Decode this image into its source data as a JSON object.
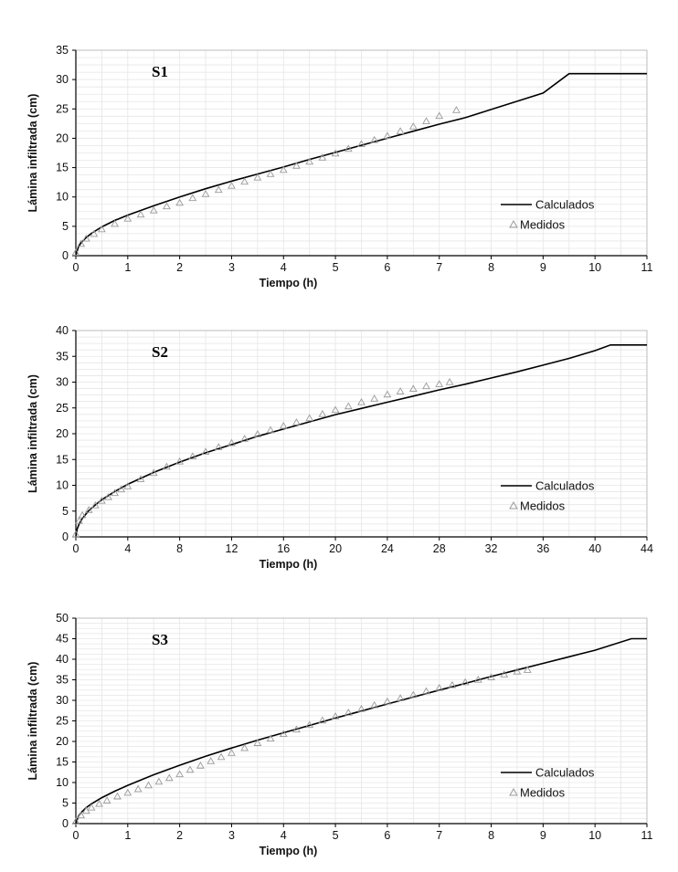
{
  "chart_data": [
    {
      "type": "line",
      "panel_label": "S1",
      "xlabel": "Tiempo (h)",
      "ylabel": "Lámina infiltrada (cm)",
      "xlim": [
        0,
        11
      ],
      "ylim": [
        0,
        35
      ],
      "xticks": [
        "0",
        "1",
        "2",
        "3",
        "4",
        "5",
        "6",
        "7",
        "8",
        "9",
        "10",
        "11"
      ],
      "yticks": [
        "0",
        "5",
        "10",
        "15",
        "20",
        "25",
        "30",
        "35"
      ],
      "grid": true,
      "legend": "right",
      "series": [
        {
          "name": "Calculados",
          "style": "line",
          "color": "#000000",
          "x": [
            0,
            0.05,
            0.1,
            0.2,
            0.3,
            0.5,
            0.75,
            1,
            1.5,
            2,
            2.5,
            3,
            3.5,
            4,
            4.5,
            5,
            5.5,
            6,
            6.5,
            7,
            7.5,
            8,
            8.5,
            9,
            9.5,
            10,
            10.5,
            11
          ],
          "y": [
            0,
            1.5,
            2.2,
            3.1,
            3.8,
            4.9,
            6.0,
            6.9,
            8.5,
            10.0,
            11.4,
            12.7,
            13.9,
            15.1,
            16.4,
            17.6,
            18.8,
            20.0,
            21.2,
            22.4,
            23.5,
            24.9,
            26.3,
            27.7,
            31.0,
            31.0,
            31.0,
            31.0
          ]
        },
        {
          "name": "Medidos",
          "style": "triangle-marker",
          "color": "#9a9a9a",
          "x": [
            0,
            0.1,
            0.2,
            0.35,
            0.5,
            0.75,
            1,
            1.25,
            1.5,
            1.75,
            2,
            2.25,
            2.5,
            2.75,
            3,
            3.25,
            3.5,
            3.75,
            4,
            4.25,
            4.5,
            4.75,
            5,
            5.25,
            5.5,
            5.75,
            6,
            6.25,
            6.5,
            6.75,
            7,
            7.33
          ],
          "y": [
            0.5,
            2.0,
            2.9,
            3.7,
            4.5,
            5.4,
            6.3,
            7.0,
            7.7,
            8.4,
            9.0,
            9.8,
            10.5,
            11.2,
            11.9,
            12.6,
            13.3,
            13.9,
            14.6,
            15.3,
            16.0,
            16.7,
            17.4,
            18.2,
            19.0,
            19.7,
            20.4,
            21.2,
            22.0,
            22.9,
            23.8,
            24.8
          ]
        }
      ]
    },
    {
      "type": "line",
      "panel_label": "S2",
      "xlabel": "Tiempo (h)",
      "ylabel": "Lámina infiltrada (cm)",
      "xlim": [
        0,
        44
      ],
      "ylim": [
        0,
        40
      ],
      "xticks": [
        "0",
        "4",
        "8",
        "12",
        "16",
        "20",
        "24",
        "28",
        "32",
        "36",
        "40",
        "44"
      ],
      "yticks": [
        "0",
        "5",
        "10",
        "15",
        "20",
        "25",
        "30",
        "35",
        "40"
      ],
      "grid": true,
      "legend": "right",
      "series": [
        {
          "name": "Calculados",
          "style": "line",
          "color": "#000000",
          "x": [
            0,
            0.1,
            0.25,
            0.5,
            1,
            1.5,
            2,
            3,
            4,
            6,
            8,
            10,
            12,
            14,
            16,
            18,
            20,
            22,
            24,
            26,
            28,
            30,
            32,
            34,
            36,
            38,
            40,
            41.2,
            42,
            44
          ],
          "y": [
            0,
            1.5,
            2.5,
            3.6,
            5.1,
            6.2,
            7.2,
            8.8,
            10.2,
            12.5,
            14.5,
            16.3,
            17.9,
            19.5,
            20.9,
            22.3,
            23.7,
            24.9,
            26.1,
            27.3,
            28.5,
            29.6,
            30.8,
            32.0,
            33.3,
            34.6,
            36.1,
            37.2,
            37.2,
            37.2
          ]
        },
        {
          "name": "Medidos",
          "style": "triangle-marker",
          "color": "#9a9a9a",
          "x": [
            0,
            0.25,
            0.5,
            1,
            1.5,
            2,
            2.5,
            3,
            3.5,
            4,
            5,
            6,
            7,
            8,
            9,
            10,
            11,
            12,
            13,
            14,
            15,
            16,
            17,
            18,
            19,
            20,
            21,
            22,
            23,
            24,
            25,
            26,
            27,
            28,
            28.8
          ],
          "y": [
            0.5,
            3.1,
            4.2,
            5.2,
            6.1,
            7.0,
            7.7,
            8.5,
            9.2,
            9.8,
            11.2,
            12.4,
            13.6,
            14.6,
            15.6,
            16.5,
            17.4,
            18.2,
            19.0,
            19.9,
            20.7,
            21.5,
            22.2,
            23.0,
            23.8,
            24.6,
            25.3,
            26.1,
            26.8,
            27.6,
            28.2,
            28.7,
            29.2,
            29.6,
            30.0
          ]
        }
      ]
    },
    {
      "type": "line",
      "panel_label": "S3",
      "xlabel": "Tiempo (h)",
      "ylabel": "Lámina infiltrada (cm)",
      "xlim": [
        0,
        11
      ],
      "ylim": [
        0,
        50
      ],
      "xticks": [
        "0",
        "1",
        "2",
        "3",
        "4",
        "5",
        "6",
        "7",
        "8",
        "9",
        "10",
        "11"
      ],
      "yticks": [
        "0",
        "5",
        "10",
        "15",
        "20",
        "25",
        "30",
        "35",
        "40",
        "45",
        "50"
      ],
      "grid": true,
      "legend": "right",
      "series": [
        {
          "name": "Calculados",
          "style": "line",
          "color": "#000000",
          "x": [
            0,
            0.05,
            0.1,
            0.2,
            0.3,
            0.5,
            0.75,
            1,
            1.5,
            2,
            2.5,
            3,
            3.5,
            4,
            4.5,
            5,
            5.5,
            6,
            6.5,
            7,
            7.5,
            8,
            8.5,
            9,
            9.5,
            10,
            10.7,
            11
          ],
          "y": [
            0,
            1.8,
            2.7,
            3.9,
            4.8,
            6.3,
            7.9,
            9.3,
            11.9,
            14.2,
            16.4,
            18.4,
            20.3,
            22.1,
            23.9,
            25.7,
            27.4,
            29.1,
            30.8,
            32.5,
            34.1,
            35.8,
            37.4,
            39.0,
            40.6,
            42.2,
            45.0,
            45.0
          ]
        },
        {
          "name": "Medidos",
          "style": "triangle-marker",
          "color": "#9a9a9a",
          "x": [
            0,
            0.1,
            0.2,
            0.3,
            0.45,
            0.6,
            0.8,
            1,
            1.2,
            1.4,
            1.6,
            1.8,
            2,
            2.2,
            2.4,
            2.6,
            2.8,
            3,
            3.25,
            3.5,
            3.75,
            4,
            4.25,
            4.5,
            4.75,
            5,
            5.25,
            5.5,
            5.75,
            6,
            6.25,
            6.5,
            6.75,
            7,
            7.25,
            7.5,
            7.75,
            8,
            8.25,
            8.5,
            8.7
          ],
          "y": [
            0.5,
            2.0,
            3.1,
            3.9,
            4.8,
            5.6,
            6.6,
            7.5,
            8.4,
            9.3,
            10.2,
            11.1,
            12.0,
            13.1,
            14.1,
            15.2,
            16.2,
            17.2,
            18.4,
            19.6,
            20.7,
            21.8,
            22.9,
            24.0,
            25.1,
            26.1,
            27.0,
            27.9,
            28.8,
            29.7,
            30.5,
            31.3,
            32.2,
            33.0,
            33.7,
            34.4,
            35.0,
            35.6,
            36.3,
            37.0,
            37.4
          ]
        }
      ]
    }
  ]
}
